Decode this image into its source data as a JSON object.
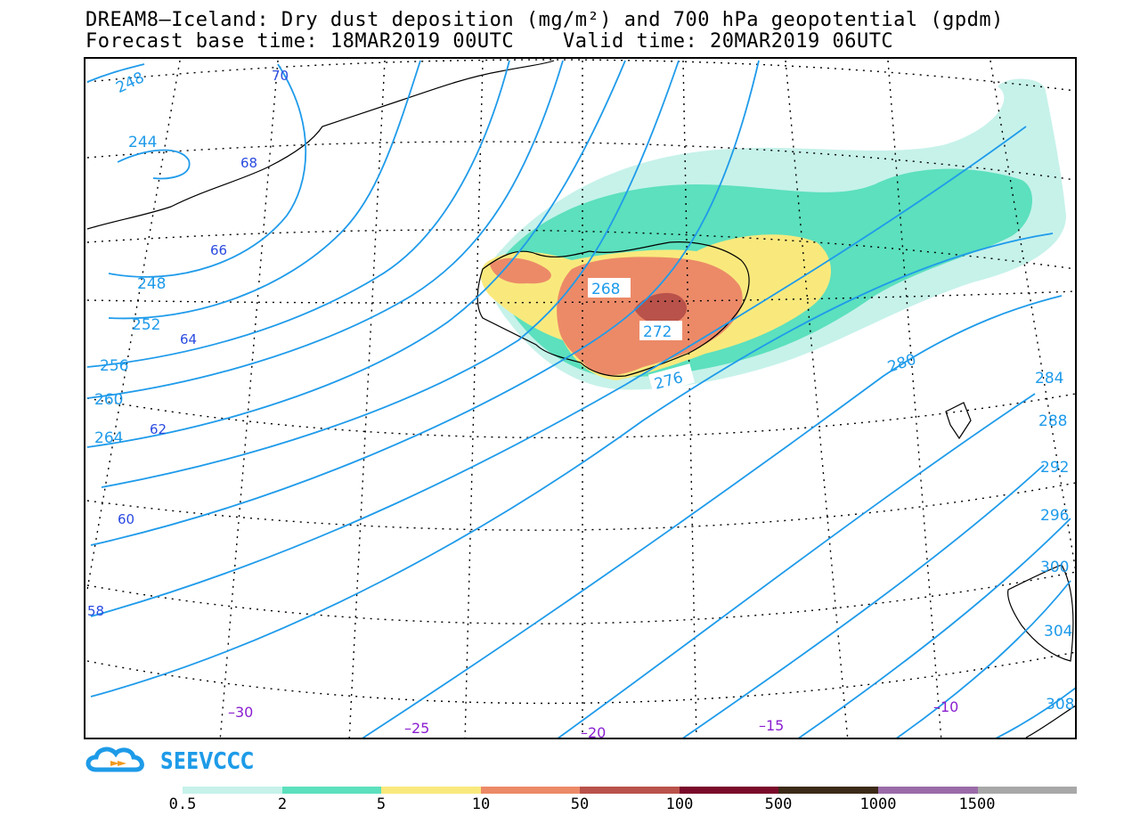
{
  "title": {
    "line1": "DREAM8–Iceland: Dry dust deposition (mg/m²) and 700 hPa geopotential (gpdm)",
    "line2": "Forecast base time: 18MAR2019 00UTC    Valid time: 20MAR2019 06UTC"
  },
  "map": {
    "geopotential_labels": [
      "248",
      "244",
      "248",
      "252",
      "256",
      "260",
      "264",
      "268",
      "272",
      "276",
      "280",
      "284",
      "288",
      "292",
      "296",
      "300",
      "304",
      "308"
    ],
    "latitude_labels": [
      "70",
      "68",
      "66",
      "64",
      "62",
      "60",
      "58"
    ],
    "longitude_labels": [
      "–30",
      "–25",
      "–20",
      "–15",
      "–10"
    ],
    "contour_color": "#1f9bea"
  },
  "logo": {
    "text": "SEEVCCC"
  },
  "legend": {
    "colors": [
      "#c6f2ea",
      "#5ce0bd",
      "#f9e97d",
      "#ec8a68",
      "#b9524a",
      "#7a0a2a",
      "#3c2a18",
      "#9a6ba8",
      "#a8a8a8"
    ],
    "labels": [
      "0.5",
      "2",
      "5",
      "10",
      "50",
      "100",
      "500",
      "1000",
      "1500"
    ]
  }
}
